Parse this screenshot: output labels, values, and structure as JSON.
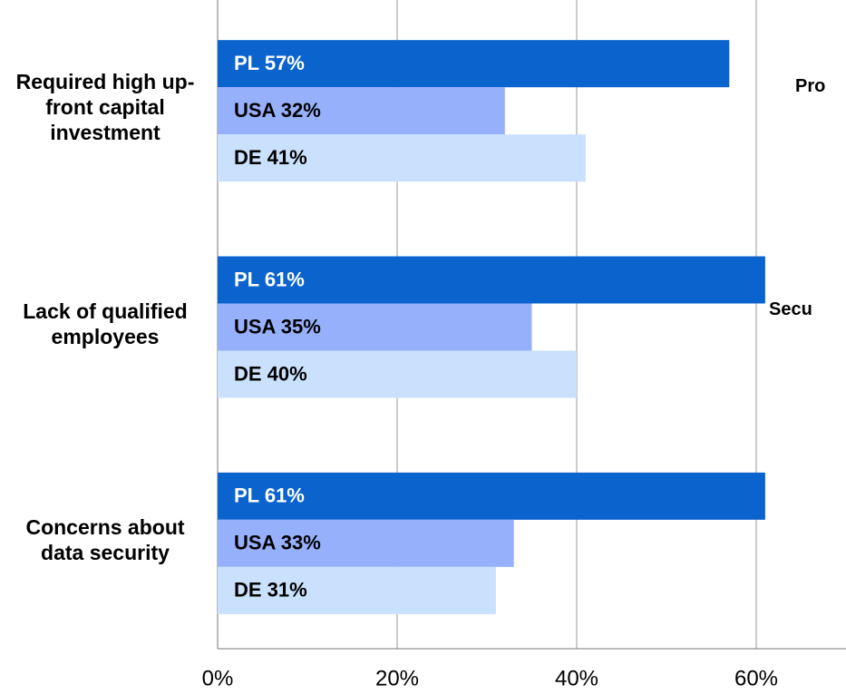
{
  "chart_data": {
    "type": "barh",
    "categories": [
      "Required high up-front capital investment",
      "Lack of qualified employees",
      "Concerns about data security"
    ],
    "series": [
      {
        "name": "PL",
        "color": "#0b63ce",
        "label_color": "#ffffff",
        "values": [
          57,
          61,
          61
        ],
        "value_labels": [
          "PL 57%",
          "PL 61%",
          "PL 61%"
        ]
      },
      {
        "name": "USA",
        "color": "#97b0fc",
        "label_color": "#000000",
        "values": [
          32,
          35,
          33
        ],
        "value_labels": [
          "USA 32%",
          "USA 35%",
          "USA 33%"
        ]
      },
      {
        "name": "DE",
        "color": "#c9e1fc",
        "label_color": "#000000",
        "values": [
          41,
          40,
          31
        ],
        "value_labels": [
          "DE 41%",
          "DE 40%",
          "DE 31%"
        ]
      }
    ],
    "xlim": [
      0,
      70
    ],
    "xticks": [
      {
        "value": 0,
        "label": "0%"
      },
      {
        "value": 20,
        "label": "20%"
      },
      {
        "value": 40,
        "label": "40%"
      },
      {
        "value": 60,
        "label": "60%"
      }
    ],
    "grid": true,
    "annotations": [
      "Pro",
      "Secu"
    ]
  }
}
